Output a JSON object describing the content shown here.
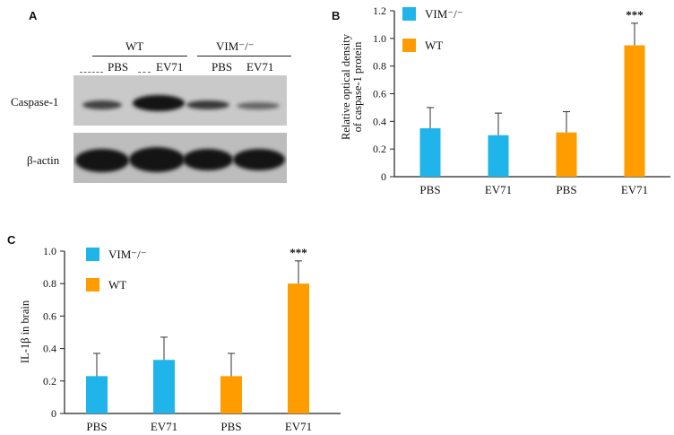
{
  "panels": {
    "a": {
      "letter": "A",
      "groups": [
        "WT",
        "VIM⁻/⁻"
      ],
      "lanes": [
        "PBS",
        "EV71",
        "PBS",
        "EV71"
      ],
      "rows": [
        "Caspase-1",
        "β-actin"
      ]
    },
    "b": {
      "letter": "B"
    },
    "c": {
      "letter": "C"
    }
  },
  "colors": {
    "vim_ko": "#1fb4ea",
    "wt": "#ff9c00",
    "axis": "#222222",
    "blot_bg": "#c8c8c8",
    "band": "#141414"
  },
  "chart_data": [
    {
      "id": "B",
      "type": "bar",
      "categories": [
        "PBS",
        "EV71",
        "PBS",
        "EV71"
      ],
      "values": [
        0.35,
        0.3,
        0.32,
        0.95
      ],
      "errors": [
        0.15,
        0.16,
        0.15,
        0.16
      ],
      "bar_series": [
        "VIM⁻/⁻",
        "VIM⁻/⁻",
        "WT",
        "WT"
      ],
      "ylabel": "Relative optical density of caspase-1 protein",
      "ylim": [
        0,
        1.2
      ],
      "yticks": [
        "0",
        "0.2",
        "0.4",
        "0.6",
        "0.8",
        "1.0",
        "1.2"
      ],
      "legend": [
        {
          "name": "VIM⁻/⁻",
          "color": "#1fb4ea"
        },
        {
          "name": "WT",
          "color": "#ff9c00"
        }
      ],
      "legend_position": "top-left",
      "annotations": [
        {
          "category_index": 3,
          "text": "***"
        }
      ],
      "grid": false
    },
    {
      "id": "C",
      "type": "bar",
      "categories": [
        "PBS",
        "EV71",
        "PBS",
        "EV71"
      ],
      "values": [
        0.23,
        0.33,
        0.23,
        0.8
      ],
      "errors": [
        0.14,
        0.14,
        0.14,
        0.14
      ],
      "bar_series": [
        "VIM⁻/⁻",
        "VIM⁻/⁻",
        "WT",
        "WT"
      ],
      "ylabel": "IL-1β in brain",
      "ylim": [
        0,
        1.0
      ],
      "yticks": [
        "0",
        "0.2",
        "0.4",
        "0.6",
        "0.8",
        "1.0"
      ],
      "legend": [
        {
          "name": "VIM⁻/⁻",
          "color": "#1fb4ea"
        },
        {
          "name": "WT",
          "color": "#ff9c00"
        }
      ],
      "legend_position": "top-left",
      "annotations": [
        {
          "category_index": 3,
          "text": "***"
        }
      ],
      "grid": false
    }
  ]
}
